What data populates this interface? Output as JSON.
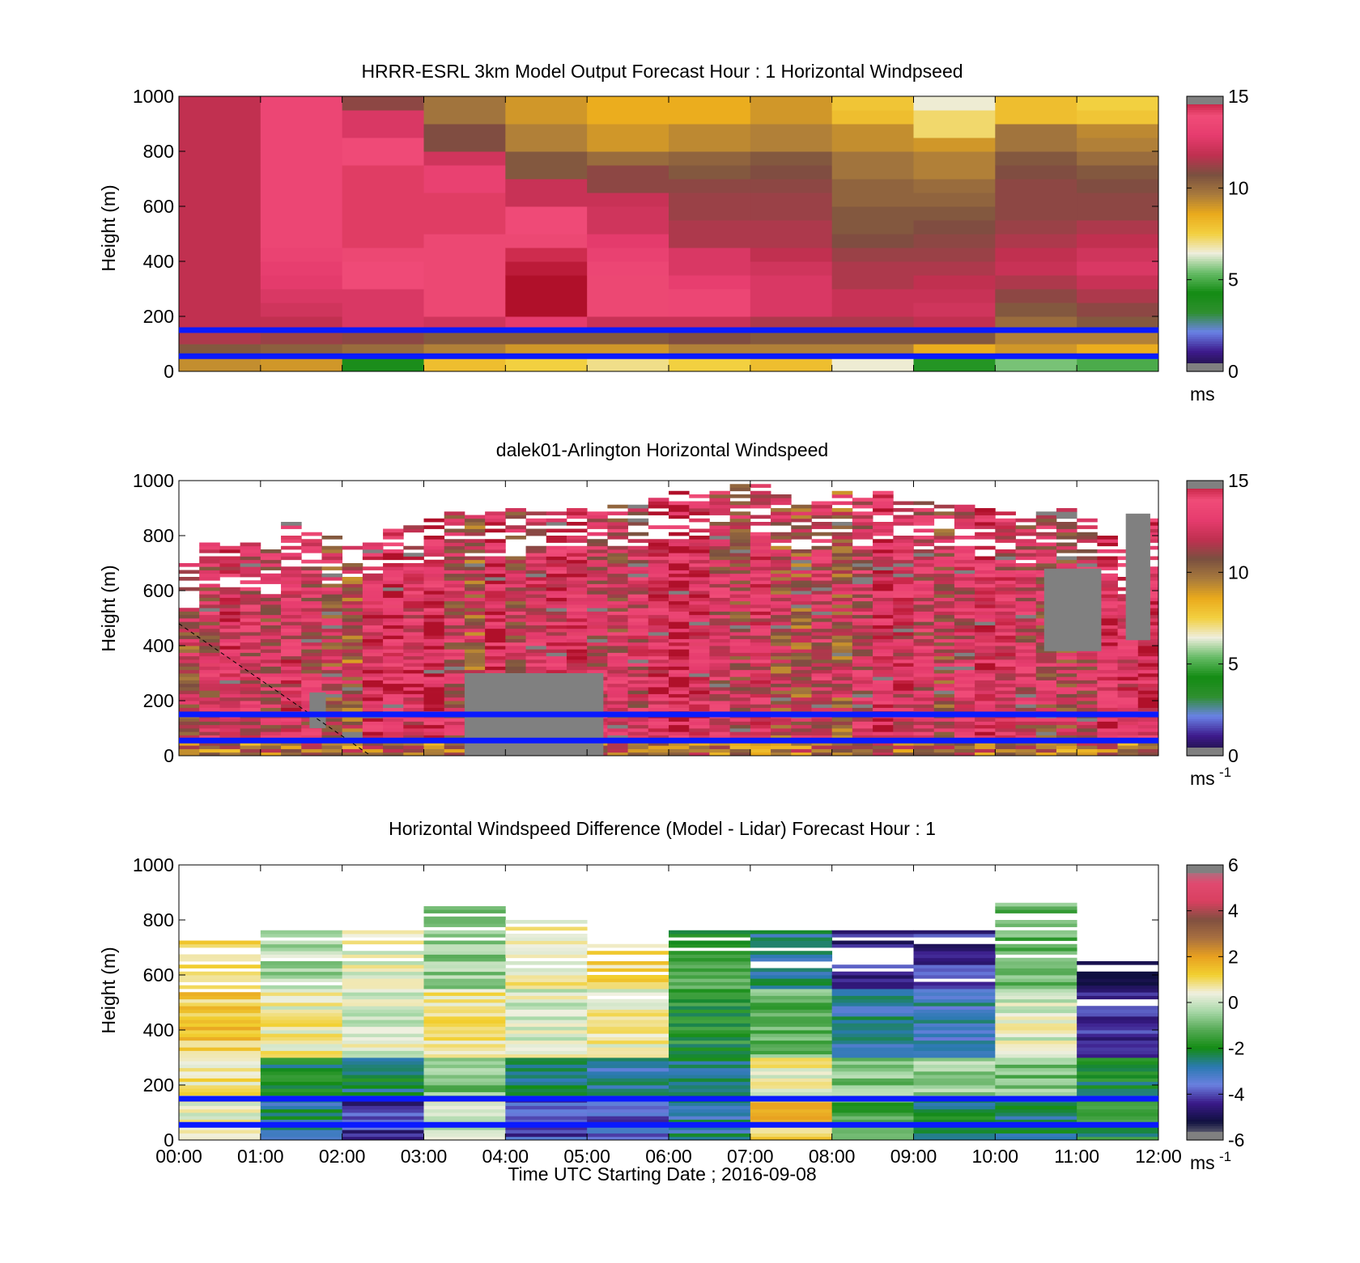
{
  "colors": {
    "speed_scale": [
      "#1a1233",
      "#3d1a8c",
      "#6a82e6",
      "#2e8f2e",
      "#148c14",
      "#66bb66",
      "#eeeedd",
      "#f2d040",
      "#eaaa1c",
      "#a87a3c",
      "#7a5040",
      "#c03050",
      "#e63c6e",
      "#f04c78",
      "#b0102a"
    ],
    "diff_scale": [
      "#888888",
      "#101040",
      "#3a1a88",
      "#6a80e0",
      "#2a7ab0",
      "#148c14",
      "#55aa55",
      "#a8d8a8",
      "#f0f0e0",
      "#f2d030",
      "#e8a020",
      "#a87040",
      "#805040",
      "#d84060",
      "#e04a70",
      "#888888"
    ],
    "reference_line": "#0a1aff",
    "missing": "#808080"
  },
  "chart_data": [
    {
      "type": "heatmap",
      "title": "HRRR-ESRL 3km Model Output   Forecast Hour : 1 Horizontal Windpseed",
      "xlabel": "",
      "ylabel": "Height (m)",
      "xlim": [
        0,
        12
      ],
      "ylim": [
        0,
        1000
      ],
      "yticks": [
        "1000",
        "800",
        "600",
        "400",
        "200",
        "0"
      ],
      "xticks": [],
      "colorbar": {
        "ticks": [
          "15",
          "10",
          "5",
          "0"
        ],
        "range": [
          0,
          15
        ],
        "unit_label": "ms",
        "unit_exp": ""
      },
      "reference_lines_m": [
        150,
        55
      ],
      "heights_m": [
        25,
        75,
        125,
        175,
        225,
        275,
        325,
        375,
        425,
        475,
        525,
        575,
        625,
        675,
        725,
        775,
        825,
        875,
        925,
        975
      ],
      "values": [
        [
          9.2,
          10.5,
          11.5,
          11.8,
          11.8,
          11.8,
          11.8,
          11.8,
          11.8,
          11.8,
          11.8,
          11.8,
          11.8,
          11.8,
          11.8,
          11.8,
          11.8,
          11.8,
          11.8,
          11.8
        ],
        [
          9.0,
          10.3,
          11.2,
          11.8,
          12.2,
          12.5,
          12.8,
          13.0,
          13.3,
          13.5,
          13.5,
          13.5,
          13.5,
          13.5,
          13.5,
          13.5,
          13.5,
          13.5,
          13.5,
          13.5
        ],
        [
          4.0,
          10.0,
          11.0,
          12.5,
          12.5,
          12.5,
          13.8,
          13.8,
          14.0,
          14.2,
          14.2,
          14.2,
          14.2,
          14.2,
          14.2,
          13.8,
          13.8,
          12.5,
          12.5,
          11.0
        ],
        [
          8.0,
          9.5,
          10.5,
          12.2,
          14.0,
          14.0,
          14.0,
          14.0,
          14.0,
          14.0,
          14.2,
          14.2,
          14.2,
          13.2,
          13.2,
          12.2,
          10.8,
          10.8,
          9.8,
          9.8
        ],
        [
          7.5,
          9.0,
          10.5,
          12.8,
          15.0,
          15.0,
          15.0,
          14.8,
          14.5,
          14.0,
          13.8,
          13.8,
          12.0,
          12.0,
          10.5,
          10.5,
          9.5,
          9.5,
          9.0,
          9.0
        ],
        [
          7.0,
          9.0,
          10.5,
          12.0,
          14.0,
          14.0,
          14.0,
          13.5,
          13.2,
          12.8,
          12.2,
          12.2,
          12.0,
          11.0,
          11.0,
          10.0,
          9.0,
          9.0,
          8.5,
          8.5
        ],
        [
          7.5,
          9.5,
          10.8,
          12.0,
          13.5,
          13.5,
          13.0,
          12.5,
          12.5,
          11.5,
          11.5,
          11.2,
          11.2,
          11.0,
          10.5,
          10.2,
          9.3,
          9.3,
          8.5,
          8.5
        ],
        [
          8.0,
          9.5,
          10.5,
          11.5,
          12.5,
          12.5,
          12.5,
          12.2,
          11.8,
          11.5,
          11.5,
          11.2,
          11.2,
          11.0,
          10.8,
          10.5,
          9.5,
          9.5,
          9.0,
          9.0
        ],
        [
          6.5,
          9.5,
          10.5,
          11.5,
          12.0,
          12.0,
          11.5,
          11.5,
          11.2,
          10.8,
          10.5,
          10.5,
          10.2,
          10.2,
          9.8,
          9.8,
          9.2,
          9.2,
          8.0,
          7.8
        ],
        [
          4.5,
          8.5,
          10.5,
          11.8,
          12.2,
          12.0,
          11.8,
          11.5,
          11.2,
          11.0,
          10.8,
          10.5,
          10.2,
          10.0,
          9.5,
          9.5,
          9.0,
          7.2,
          7.2,
          6.5
        ],
        [
          5.5,
          9.0,
          9.5,
          10.0,
          10.5,
          11.0,
          11.5,
          12.0,
          11.8,
          11.5,
          11.2,
          11.0,
          11.0,
          11.0,
          10.8,
          10.5,
          9.8,
          9.8,
          8.0,
          8.0
        ],
        [
          5.0,
          8.5,
          9.5,
          10.5,
          11.0,
          11.5,
          12.0,
          12.5,
          12.2,
          11.8,
          11.5,
          11.0,
          11.0,
          10.8,
          10.5,
          10.0,
          9.5,
          9.3,
          7.8,
          7.5
        ]
      ]
    },
    {
      "type": "heatmap",
      "title": "dalek01-Arlington  Horizontal Windspeed",
      "xlabel": "",
      "ylabel": "Height (m)",
      "xlim": [
        0,
        12
      ],
      "ylim": [
        0,
        1000
      ],
      "yticks": [
        "1000",
        "800",
        "600",
        "400",
        "200",
        "0"
      ],
      "xticks": [],
      "colorbar": {
        "ticks": [
          "15",
          "10",
          "5",
          "0"
        ],
        "range": [
          0,
          15
        ],
        "unit_label": "ms",
        "unit_exp": "-1"
      },
      "reference_lines_m": [
        150,
        55
      ],
      "scan_interval_h": 0.25,
      "profile_tops_m": [
        700,
        780,
        760,
        780,
        760,
        840,
        820,
        800,
        760,
        800,
        820,
        850,
        860,
        900,
        900,
        880,
        900,
        880,
        880,
        900,
        900,
        940,
        920,
        940,
        960,
        960,
        960,
        980,
        980,
        940,
        920,
        920,
        960,
        940,
        960,
        940,
        920,
        920,
        940,
        900,
        880,
        860,
        900,
        900,
        860,
        800,
        760,
        860
      ],
      "profile_means_ms": [
        11.2,
        12.2,
        13.3,
        12.6,
        12.0,
        13.0,
        12.3,
        11.5,
        10.8,
        13.6,
        14.4,
        13.2,
        14.0,
        12.0,
        11.0,
        13.9,
        12.0,
        12.8,
        13.2,
        13.5,
        12.4,
        12.0,
        12.6,
        13.5,
        14.5,
        13.6,
        12.2,
        11.8,
        12.9,
        11.2,
        11.0,
        12.3,
        11.0,
        12.5,
        13.5,
        13.0,
        12.3,
        11.5,
        12.7,
        13.5,
        12.8,
        12.2,
        11.7,
        11.5,
        12.4,
        13.8,
        13.2,
        13.6
      ],
      "missing_regions": [
        {
          "t0": 3.5,
          "t1": 5.2,
          "z0": 0,
          "z1": 300,
          "value": "missing"
        },
        {
          "t0": 1.6,
          "t1": 1.8,
          "z0": 100,
          "z1": 230,
          "value": "missing"
        },
        {
          "t0": 10.6,
          "t1": 11.3,
          "z0": 380,
          "z1": 680,
          "value": "missing"
        },
        {
          "t0": 11.6,
          "t1": 11.9,
          "z0": 420,
          "z1": 880,
          "value": "missing"
        }
      ],
      "dashed_line": {
        "t0": 0,
        "z0": 480,
        "t1": 2.35,
        "z1": 0
      }
    },
    {
      "type": "heatmap",
      "title": "Horizontal Windspeed Difference (Model - Lidar) Forecast Hour : 1",
      "xlabel": "Time UTC  Starting Date ; 2016-09-08",
      "ylabel": "Height (m)",
      "xlim": [
        0,
        12
      ],
      "ylim": [
        0,
        1000
      ],
      "yticks": [
        "1000",
        "800",
        "600",
        "400",
        "200",
        "0"
      ],
      "xticks": [
        "00:00",
        "01:00",
        "02:00",
        "03:00",
        "04:00",
        "05:00",
        "06:00",
        "07:00",
        "08:00",
        "09:00",
        "10:00",
        "11:00",
        "12:00"
      ],
      "colorbar": {
        "ticks": [
          "6",
          "4",
          "2",
          "0",
          "-2",
          "-4",
          "-6"
        ],
        "range": [
          -6,
          6
        ],
        "unit_label": "ms",
        "unit_exp": "-1"
      },
      "reference_lines_m": [
        150,
        55
      ],
      "column_tops_m": [
        720,
        760,
        800,
        840,
        800,
        710,
        760,
        760,
        790,
        760,
        860,
        650
      ],
      "column_profiles": [
        {
          "hour": "00:00",
          "upper": 0.9,
          "mid": 1.4,
          "low": 0.8,
          "near_surface": 0.3
        },
        {
          "hour": "01:00",
          "upper": -0.4,
          "mid": 0.6,
          "low": -2.5,
          "near_surface": -3.0
        },
        {
          "hour": "02:00",
          "upper": 0.4,
          "mid": 0.2,
          "low": -2.8,
          "near_surface": -4.8
        },
        {
          "hour": "03:00",
          "upper": -0.6,
          "mid": 0.9,
          "low": -1.0,
          "near_surface": 0.0
        },
        {
          "hour": "04:00",
          "upper": 0.5,
          "mid": 0.2,
          "low": -2.8,
          "near_surface": -4.5
        },
        {
          "hour": "05:00",
          "upper": 1.2,
          "mid": 0.6,
          "low": -3.2,
          "near_surface": -4.2
        },
        {
          "hour": "06:00",
          "upper": -1.8,
          "mid": -2.2,
          "low": -2.8,
          "near_surface": -3.2
        },
        {
          "hour": "07:00",
          "upper": -3.0,
          "mid": -1.2,
          "low": 0.6,
          "near_surface": 1.5
        },
        {
          "hour": "08:00",
          "upper": -5.2,
          "mid": -3.2,
          "low": -0.8,
          "near_surface": -1.5
        },
        {
          "hour": "09:00",
          "upper": -5.0,
          "mid": -3.5,
          "low": -0.5,
          "near_surface": -2.5
        },
        {
          "hour": "10:00",
          "upper": -1.2,
          "mid": 0.2,
          "low": -1.0,
          "near_surface": -2.8
        },
        {
          "hour": "11:00",
          "upper": -5.5,
          "mid": -4.8,
          "low": -2.5,
          "near_surface": -2.2
        }
      ]
    }
  ]
}
